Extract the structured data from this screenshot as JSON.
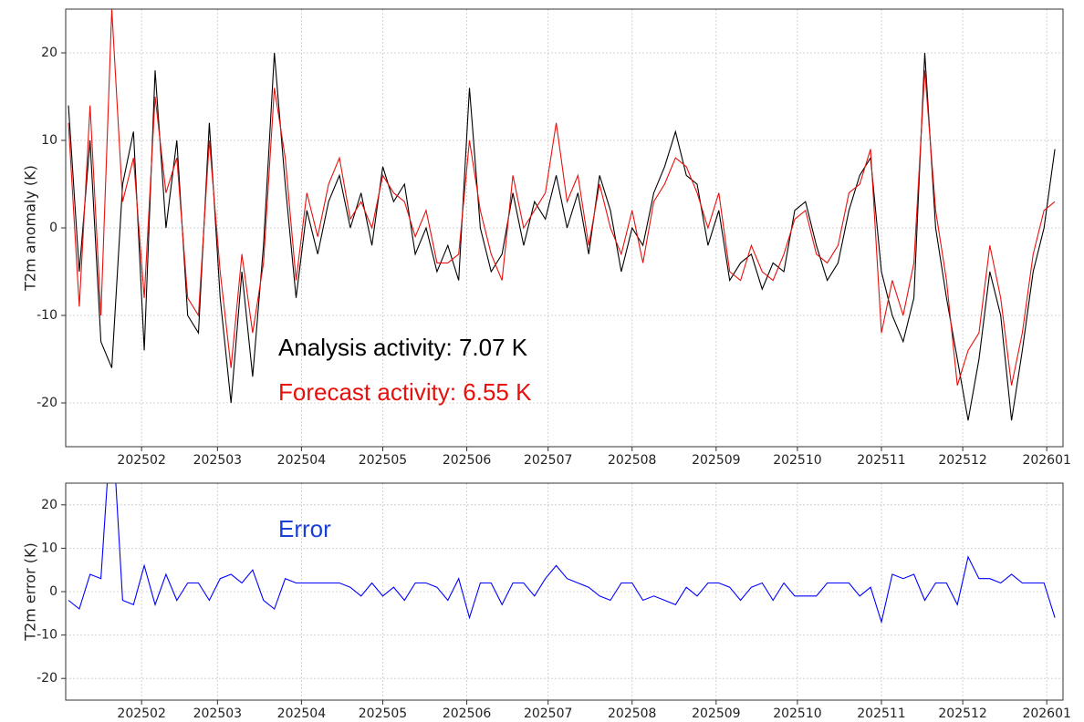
{
  "chart_data": [
    {
      "type": "line",
      "ylabel": "T2m anomaly (K)",
      "x": [
        4,
        8,
        12,
        16,
        20,
        24,
        28,
        32,
        36,
        40,
        44,
        48,
        52,
        56,
        60,
        64,
        68,
        72,
        76,
        80,
        84,
        88,
        92,
        96,
        100,
        104,
        108,
        112,
        116,
        120,
        124,
        128,
        132,
        136,
        140,
        144,
        148,
        152,
        156,
        160,
        164,
        168,
        172,
        176,
        180,
        184,
        188,
        192,
        196,
        200,
        204,
        208,
        212,
        216,
        220,
        224,
        228,
        232,
        236,
        240,
        244,
        248,
        252,
        256,
        260,
        264,
        268,
        272,
        276,
        280,
        284,
        288,
        292,
        296,
        300,
        304,
        308,
        312,
        316,
        320,
        324,
        328,
        332,
        336,
        340,
        344,
        348,
        352,
        356,
        360,
        364,
        368
      ],
      "series": [
        {
          "name": "Analysis",
          "color": "#000000",
          "values": [
            14,
            -5,
            10,
            -13,
            -16,
            5,
            11,
            -14,
            18,
            0,
            10,
            -10,
            -12,
            12,
            -8,
            -20,
            -5,
            -17,
            -2,
            20,
            5,
            -8,
            2,
            -3,
            3,
            6,
            0,
            4,
            -2,
            7,
            3,
            5,
            -3,
            0,
            -5,
            -2,
            -6,
            16,
            0,
            -5,
            -3,
            4,
            -2,
            3,
            1,
            6,
            0,
            4,
            -3,
            6,
            2,
            -5,
            0,
            -2,
            4,
            7,
            11,
            6,
            5,
            -2,
            2,
            -6,
            -4,
            -3,
            -7,
            -4,
            -5,
            2,
            3,
            -2,
            -6,
            -4,
            2,
            6,
            8,
            -5,
            -10,
            -13,
            -8,
            20,
            0,
            -8,
            -15,
            -22,
            -15,
            -5,
            -10,
            -22,
            -14,
            -5,
            0,
            9
          ]
        },
        {
          "name": "Forecast",
          "color": "#e8100c",
          "values": [
            12,
            -9,
            14,
            -10,
            25,
            3,
            8,
            -8,
            15,
            4,
            8,
            -8,
            -10,
            10,
            -5,
            -16,
            -3,
            -12,
            -4,
            16,
            8,
            -6,
            4,
            -1,
            5,
            8,
            1,
            3,
            0,
            6,
            4,
            3,
            -1,
            2,
            -4,
            -4,
            -3,
            10,
            2,
            -3,
            -6,
            6,
            0,
            2,
            4,
            12,
            3,
            6,
            -2,
            5,
            0,
            -3,
            2,
            -4,
            3,
            5,
            8,
            7,
            4,
            0,
            4,
            -5,
            -6,
            -2,
            -5,
            -6,
            -3,
            1,
            2,
            -3,
            -4,
            -2,
            4,
            5,
            9,
            -12,
            -6,
            -10,
            -4,
            18,
            2,
            -6,
            -18,
            -14,
            -12,
            -2,
            -8,
            -18,
            -12,
            -3,
            2,
            3
          ]
        }
      ],
      "annotations": [
        {
          "text": "Analysis activity:  7.07 K",
          "color": "#000000"
        },
        {
          "text": "Forecast activity: 6.55 K",
          "color": "#e8100c"
        }
      ],
      "xlim": [
        3,
        371
      ],
      "xticks": [
        {
          "value": 31,
          "label": "202502"
        },
        {
          "value": 59,
          "label": "202503"
        },
        {
          "value": 90,
          "label": "202504"
        },
        {
          "value": 120,
          "label": "202505"
        },
        {
          "value": 151,
          "label": "202506"
        },
        {
          "value": 181,
          "label": "202507"
        },
        {
          "value": 212,
          "label": "202508"
        },
        {
          "value": 243,
          "label": "202509"
        },
        {
          "value": 273,
          "label": "202510"
        },
        {
          "value": 304,
          "label": "202511"
        },
        {
          "value": 334,
          "label": "202512"
        },
        {
          "value": 365,
          "label": "202601"
        }
      ],
      "ylim": [
        -25,
        25
      ],
      "yticks": [
        -20,
        -10,
        0,
        10,
        20
      ],
      "grid": true
    },
    {
      "type": "line",
      "ylabel": "T2m error (K)",
      "x": [
        4,
        8,
        12,
        16,
        20,
        24,
        28,
        32,
        36,
        40,
        44,
        48,
        52,
        56,
        60,
        64,
        68,
        72,
        76,
        80,
        84,
        88,
        92,
        96,
        100,
        104,
        108,
        112,
        116,
        120,
        124,
        128,
        132,
        136,
        140,
        144,
        148,
        152,
        156,
        160,
        164,
        168,
        172,
        176,
        180,
        184,
        188,
        192,
        196,
        200,
        204,
        208,
        212,
        216,
        220,
        224,
        228,
        232,
        236,
        240,
        244,
        248,
        252,
        256,
        260,
        264,
        268,
        272,
        276,
        280,
        284,
        288,
        292,
        296,
        300,
        304,
        308,
        312,
        316,
        320,
        324,
        328,
        332,
        336,
        340,
        344,
        348,
        352,
        356,
        360,
        364,
        368
      ],
      "series": [
        {
          "name": "Error",
          "color": "#0000ff",
          "values": [
            -2,
            -4,
            4,
            3,
            41,
            -2,
            -3,
            6,
            -3,
            4,
            -2,
            2,
            2,
            -2,
            3,
            4,
            2,
            5,
            -2,
            -4,
            3,
            2,
            2,
            2,
            2,
            2,
            1,
            -1,
            2,
            -1,
            1,
            -2,
            2,
            2,
            1,
            -2,
            3,
            -6,
            2,
            2,
            -3,
            2,
            2,
            -1,
            3,
            6,
            3,
            2,
            1,
            -1,
            -2,
            2,
            2,
            -2,
            -1,
            -2,
            -3,
            1,
            -1,
            2,
            2,
            1,
            -2,
            1,
            2,
            -2,
            2,
            -1,
            -1,
            -1,
            2,
            2,
            2,
            -1,
            1,
            -7,
            4,
            3,
            4,
            -2,
            2,
            2,
            -3,
            8,
            3,
            3,
            2,
            4,
            2,
            2,
            2,
            -6
          ]
        }
      ],
      "annotations": [
        {
          "text": "Error",
          "color": "#1a3fd6"
        }
      ],
      "xlim": [
        3,
        371
      ],
      "xticks": [
        {
          "value": 31,
          "label": "202502"
        },
        {
          "value": 59,
          "label": "202503"
        },
        {
          "value": 90,
          "label": "202504"
        },
        {
          "value": 120,
          "label": "202505"
        },
        {
          "value": 151,
          "label": "202506"
        },
        {
          "value": 181,
          "label": "202507"
        },
        {
          "value": 212,
          "label": "202508"
        },
        {
          "value": 243,
          "label": "202509"
        },
        {
          "value": 273,
          "label": "202510"
        },
        {
          "value": 304,
          "label": "202511"
        },
        {
          "value": 334,
          "label": "202512"
        },
        {
          "value": 365,
          "label": "202601"
        }
      ],
      "ylim": [
        -25,
        25
      ],
      "yticks": [
        -20,
        -10,
        0,
        10,
        20
      ],
      "grid": true
    }
  ]
}
